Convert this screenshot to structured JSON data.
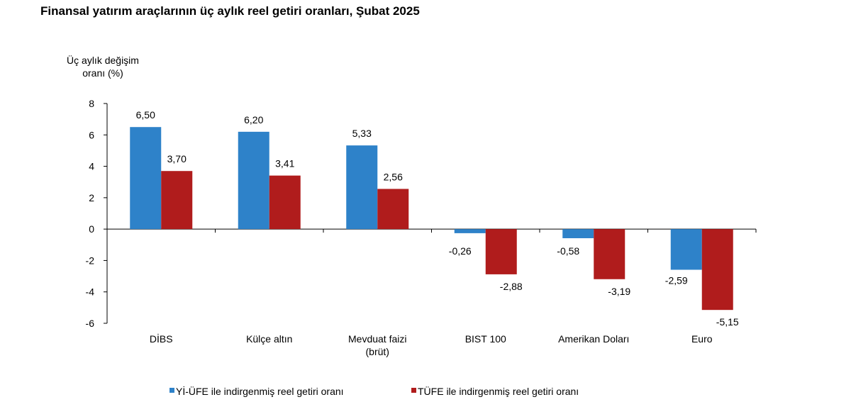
{
  "chart_data": {
    "type": "bar",
    "title": "Finansal yatırım araçlarının üç aylık reel getiri oranları, Şubat 2025",
    "ylabel_lines": [
      "Üç aylık değişim",
      "oranı (%)"
    ],
    "ylim": [
      -6,
      8
    ],
    "yticks": [
      -6,
      -4,
      -2,
      0,
      2,
      4,
      6,
      8
    ],
    "categories": [
      [
        "DİBS"
      ],
      [
        "Külçe altın"
      ],
      [
        "Mevduat faizi",
        "(brüt)"
      ],
      [
        "BIST 100"
      ],
      [
        "Amerikan Doları"
      ],
      [
        "Euro"
      ]
    ],
    "series": [
      {
        "name": "Yİ-ÜFE ile indirgenmiş reel getiri oranı",
        "color": "#2e82c9",
        "values": [
          6.5,
          6.2,
          5.33,
          -0.26,
          -0.58,
          -2.59
        ],
        "labels": [
          "6,50",
          "6,20",
          "5,33",
          "-0,26",
          "-0,58",
          "-2,59"
        ]
      },
      {
        "name": "TÜFE ile indirgenmiş reel getiri oranı",
        "color": "#b01c1c",
        "values": [
          3.7,
          3.41,
          2.56,
          -2.88,
          -3.19,
          -5.15
        ],
        "labels": [
          "3,70",
          "3,41",
          "2,56",
          "-2,88",
          "-3,19",
          "-5,15"
        ]
      }
    ],
    "legend_position": "bottom",
    "grid": false
  }
}
